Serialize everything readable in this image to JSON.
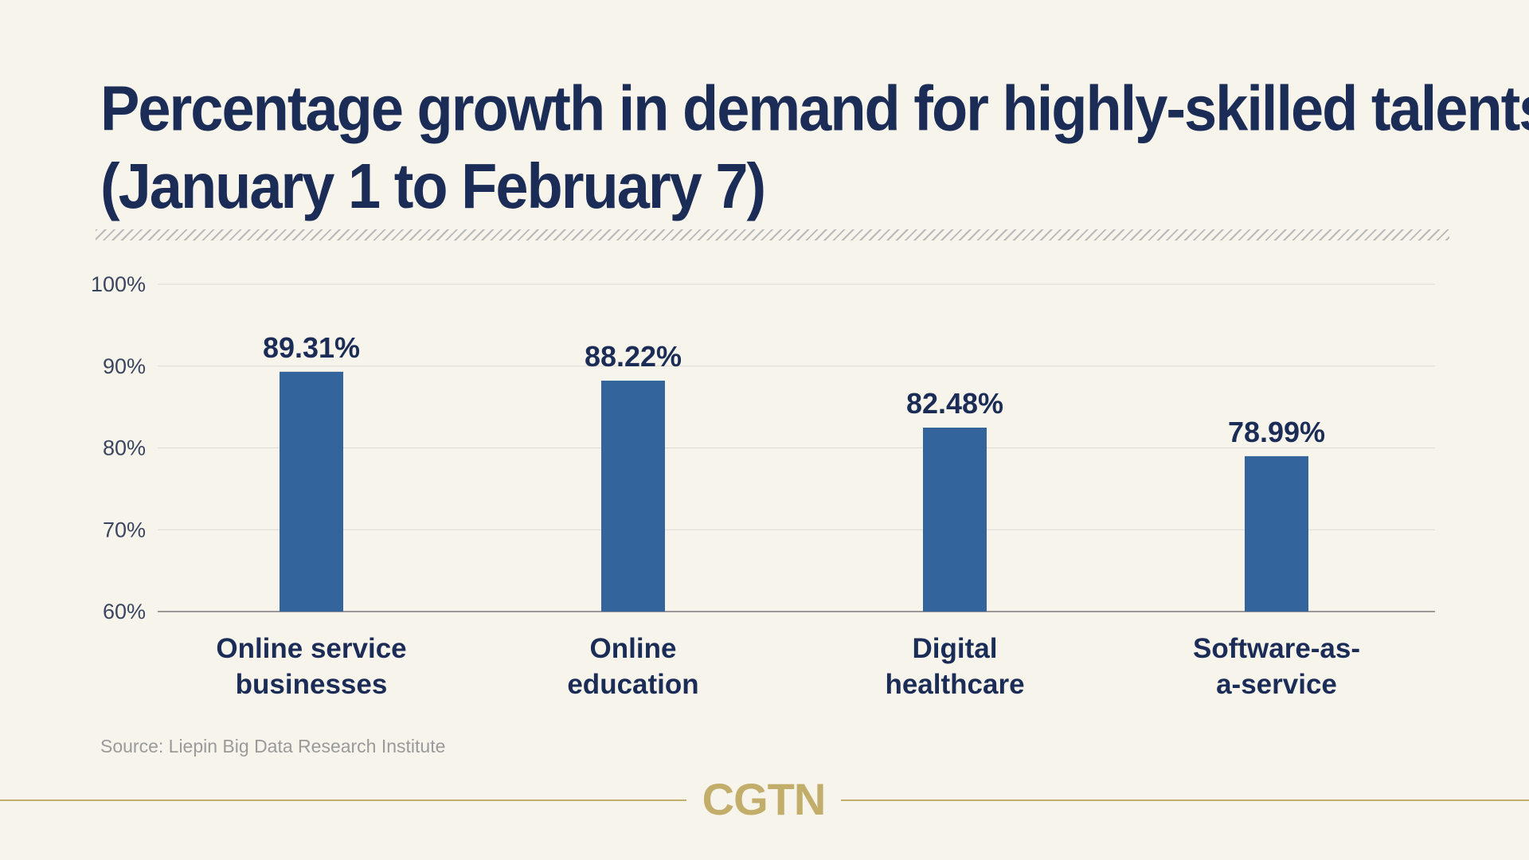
{
  "title_line1": "Percentage growth in demand for highly-skilled talents",
  "title_line2": "(January 1 to February 7)",
  "source": "Source: Liepin Big Data Research Institute",
  "brand": "CGTN",
  "colors": {
    "background": "#f7f4ec",
    "title": "#1b2d56",
    "bar": "#33649b",
    "brand": "#c3ad6b",
    "grid": "#dcdad2"
  },
  "chart_data": {
    "type": "bar",
    "categories": [
      [
        "Online service",
        "businesses"
      ],
      [
        "Online",
        "education"
      ],
      [
        "Digital",
        "healthcare"
      ],
      [
        "Software-as-",
        "a-service"
      ]
    ],
    "values": [
      89.31,
      88.22,
      82.48,
      78.99
    ],
    "value_labels": [
      "89.31%",
      "88.22%",
      "82.48%",
      "78.99%"
    ],
    "yticks": [
      60,
      70,
      80,
      90,
      100
    ],
    "ytick_labels": [
      "60%",
      "70%",
      "80%",
      "90%",
      "100%"
    ],
    "ylim": [
      60,
      100
    ],
    "grid": true,
    "legend": "none"
  }
}
